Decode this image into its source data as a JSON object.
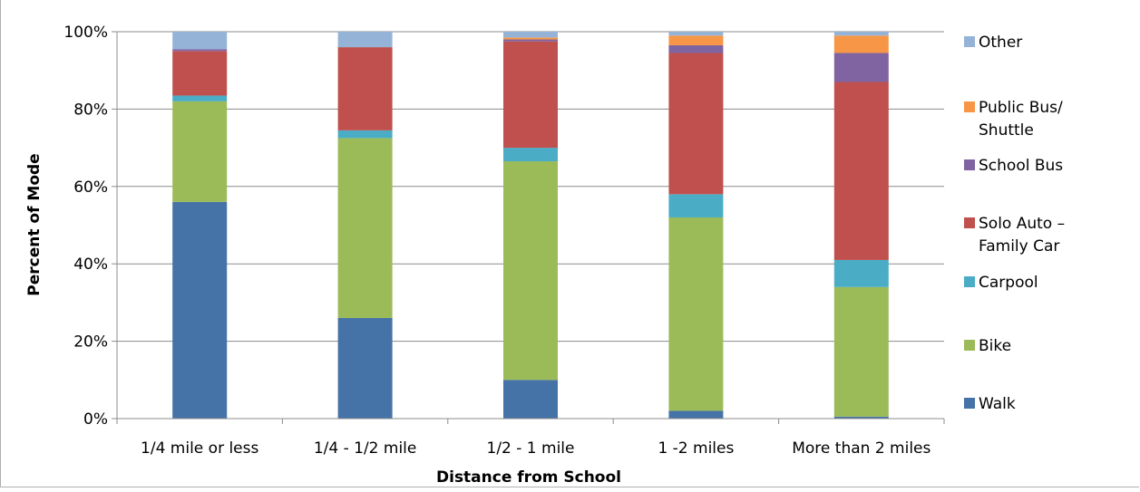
{
  "chart_data": {
    "type": "bar",
    "stacked": true,
    "title": "",
    "xlabel": "Distance from School",
    "ylabel": "Percent of Mode",
    "ylim": [
      0,
      100
    ],
    "y_ticks": [
      "0%",
      "20%",
      "40%",
      "60%",
      "80%",
      "100%"
    ],
    "grid": "horizontal",
    "legend_position": "right",
    "categories": [
      "1/4 mile or less",
      "1/4 - 1/2 mile",
      "1/2 - 1 mile",
      "1 -2 miles",
      "More than 2 miles"
    ],
    "series": [
      {
        "name": "Walk",
        "color": "#4572A7",
        "values": [
          56,
          26,
          10,
          2,
          0.5
        ]
      },
      {
        "name": "Bike",
        "color": "#9BBB59",
        "values": [
          26,
          46.5,
          56.5,
          50,
          33.5
        ]
      },
      {
        "name": "Carpool",
        "color": "#4BACC6",
        "values": [
          1.5,
          2,
          3.5,
          6,
          7
        ]
      },
      {
        "name": "Solo Auto – Family Car",
        "color": "#C0504D",
        "values": [
          11.5,
          21.5,
          27.5,
          36.5,
          46
        ]
      },
      {
        "name": "School Bus",
        "color": "#8064A2",
        "values": [
          0.5,
          0,
          0.5,
          2,
          7.5
        ]
      },
      {
        "name": "Public Bus/ Shuttle",
        "color": "#F79646",
        "values": [
          0,
          0,
          0.5,
          2.5,
          4.5
        ]
      },
      {
        "name": "Other",
        "color": "#95B3D7",
        "values": [
          4.5,
          4,
          1.5,
          1,
          1
        ]
      }
    ],
    "legend": [
      {
        "label": [
          "Other"
        ],
        "color": "#95B3D7"
      },
      {
        "label": [
          "Public Bus/",
          "Shuttle"
        ],
        "color": "#F79646"
      },
      {
        "label": [
          "School Bus"
        ],
        "color": "#8064A2"
      },
      {
        "label": [
          "Solo Auto –",
          "Family Car"
        ],
        "color": "#C0504D"
      },
      {
        "label": [
          "Carpool"
        ],
        "color": "#4BACC6"
      },
      {
        "label": [
          "Bike"
        ],
        "color": "#9BBB59"
      },
      {
        "label": [
          "Walk"
        ],
        "color": "#4572A7"
      }
    ]
  }
}
